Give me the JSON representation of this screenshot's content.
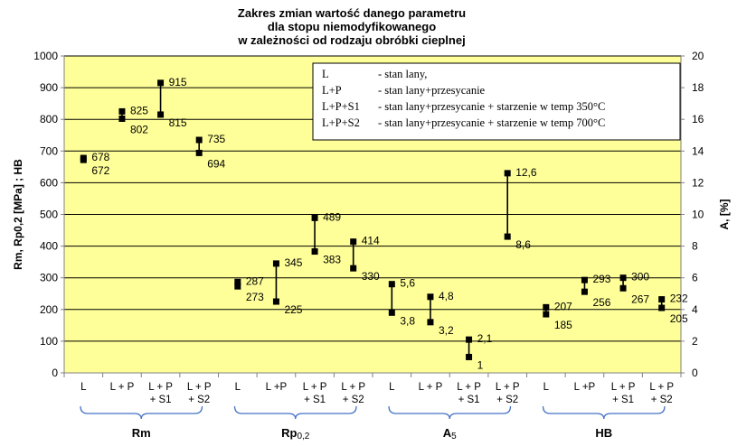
{
  "chart_data": {
    "type": "scatter",
    "title": [
      "Zakres zmian wartość danego parametru",
      "dla stopu niemodyfikowanego",
      "w zależności od rodzaju obróbki cieplnej"
    ],
    "ylabel_left": "Rm, Rp0,2 [MPa] ; HB",
    "ylabel_right": "A, [%]",
    "ylim_left": [
      0,
      1000
    ],
    "yticks_left": [
      "0",
      "100",
      "200",
      "300",
      "400",
      "500",
      "600",
      "700",
      "800",
      "900",
      "1000"
    ],
    "ylim_right": [
      0,
      20
    ],
    "yticks_right": [
      "0",
      "2",
      "4",
      "6",
      "8",
      "10",
      "12",
      "14",
      "16",
      "18",
      "20"
    ],
    "grid": true,
    "background": "#FFFF99",
    "marker_color": "#000000",
    "group_brace_color": "#4472C4",
    "categories": [
      [
        "L"
      ],
      [
        "L + P"
      ],
      [
        "L + P",
        "+ S1"
      ],
      [
        "L + P",
        "+ S2"
      ],
      [
        "L"
      ],
      [
        "L +P"
      ],
      [
        "L + P",
        "+ S1"
      ],
      [
        "L + P",
        "+ S2"
      ],
      [
        "L"
      ],
      [
        "L + P"
      ],
      [
        "L + P",
        "+ S1"
      ],
      [
        "L + P",
        "+ S2"
      ],
      [
        "L"
      ],
      [
        "L +P"
      ],
      [
        "L + P",
        "+ S1"
      ],
      [
        "L + P",
        "+ S2"
      ]
    ],
    "groups": [
      {
        "label": "Rm",
        "sub": "",
        "start": 0,
        "end": 3
      },
      {
        "label": "Rp",
        "sub": "0,2",
        "start": 4,
        "end": 7
      },
      {
        "label": "A",
        "sub": "5",
        "start": 8,
        "end": 11
      },
      {
        "label": "HB",
        "sub": "",
        "start": 12,
        "end": 15
      }
    ],
    "ranges": [
      {
        "category": 0,
        "axis": "left",
        "max": 678,
        "min": 672,
        "max_label": "678",
        "min_label": "672"
      },
      {
        "category": 1,
        "axis": "left",
        "max": 825,
        "min": 802,
        "max_label": "825",
        "min_label": "802"
      },
      {
        "category": 2,
        "axis": "left",
        "max": 915,
        "min": 815,
        "max_label": "915",
        "min_label": "815"
      },
      {
        "category": 3,
        "axis": "left",
        "max": 735,
        "min": 694,
        "max_label": "735",
        "min_label": "694"
      },
      {
        "category": 4,
        "axis": "left",
        "max": 287,
        "min": 273,
        "max_label": "287",
        "min_label": "273"
      },
      {
        "category": 5,
        "axis": "left",
        "max": 345,
        "min": 225,
        "max_label": "345",
        "min_label": "225"
      },
      {
        "category": 6,
        "axis": "left",
        "max": 489,
        "min": 383,
        "max_label": "489",
        "min_label": "383"
      },
      {
        "category": 7,
        "axis": "left",
        "max": 414,
        "min": 330,
        "max_label": "414",
        "min_label": "330"
      },
      {
        "category": 8,
        "axis": "right",
        "max": 5.6,
        "min": 3.8,
        "max_label": "5,6",
        "min_label": "3,8"
      },
      {
        "category": 9,
        "axis": "right",
        "max": 4.8,
        "min": 3.2,
        "max_label": "4,8",
        "min_label": "3,2"
      },
      {
        "category": 10,
        "axis": "right",
        "max": 2.1,
        "min": 1,
        "max_label": "2,1",
        "min_label": "1"
      },
      {
        "category": 11,
        "axis": "right",
        "max": 12.6,
        "min": 8.6,
        "max_label": "12,6",
        "min_label": "8,6"
      },
      {
        "category": 12,
        "axis": "left",
        "max": 207,
        "min": 185,
        "max_label": "207",
        "min_label": "185"
      },
      {
        "category": 13,
        "axis": "left",
        "max": 293,
        "min": 256,
        "max_label": "293",
        "min_label": "256"
      },
      {
        "category": 14,
        "axis": "left",
        "max": 300,
        "min": 267,
        "max_label": "300",
        "min_label": "267"
      },
      {
        "category": 15,
        "axis": "left",
        "max": 232,
        "min": 205,
        "max_label": "232",
        "min_label": "205"
      }
    ],
    "legend": {
      "position": "top-right",
      "entries": [
        {
          "key": "L",
          "text": "- stan lany,"
        },
        {
          "key": "L+P",
          "text": "- stan lany+przesycanie"
        },
        {
          "key": "L+P+S1",
          "text": "- stan lany+przesycanie + starzenie w temp 350°C"
        },
        {
          "key": "L+P+S2",
          "text": "- stan lany+przesycanie + starzenie w temp 700°C"
        }
      ]
    }
  }
}
